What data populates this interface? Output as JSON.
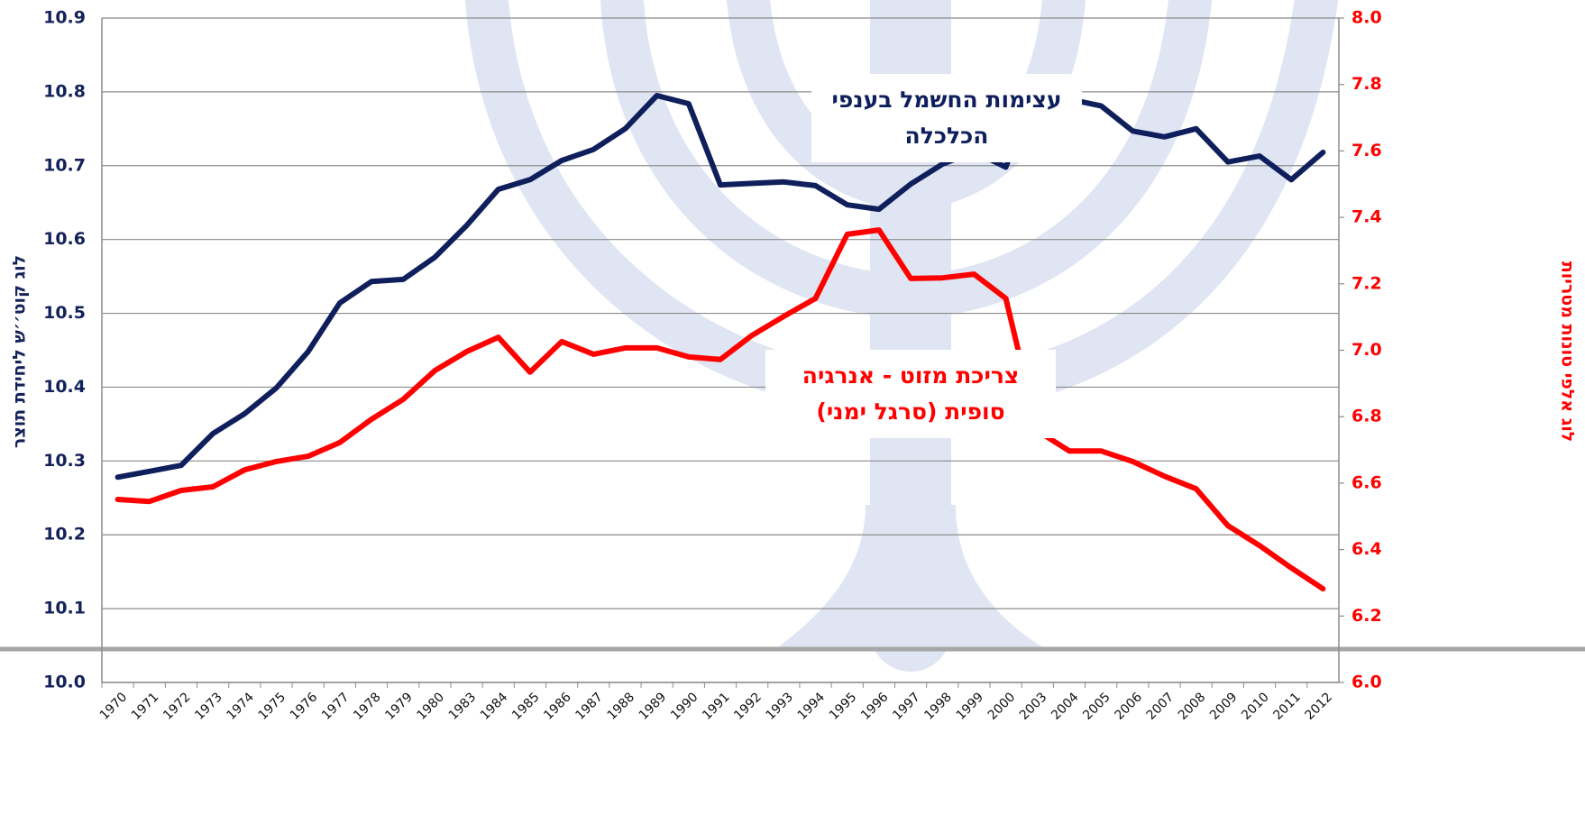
{
  "chart_data": {
    "type": "line",
    "y_label": "לוג קוט׳׳ש ליחידת תוצר",
    "y2_label": "לוג אלפי טונות מטריות",
    "categories": [
      "1970",
      "1971",
      "1972",
      "1973",
      "1974",
      "1975",
      "1976",
      "1977",
      "1978",
      "1979",
      "1980",
      "1983",
      "1984",
      "1985",
      "1986",
      "1987",
      "1988",
      "1989",
      "1990",
      "1991",
      "1992",
      "1993",
      "1994",
      "1995",
      "1996",
      "1997",
      "1998",
      "1999",
      "2000",
      "2003",
      "2004",
      "2005",
      "2006",
      "2007",
      "2008",
      "2009",
      "2010",
      "2011",
      "2012"
    ],
    "series": [
      {
        "name": [
          "עצימות החשמל בענפי",
          "הכלכלה"
        ],
        "color": "#0f1f5c",
        "axis": "y",
        "values": [
          10.278,
          10.286,
          10.294,
          10.337,
          10.364,
          10.399,
          10.448,
          10.514,
          10.543,
          10.546,
          10.576,
          10.619,
          10.668,
          10.681,
          10.707,
          10.722,
          10.75,
          10.795,
          10.784,
          10.674,
          10.676,
          10.678,
          10.673,
          10.647,
          10.641,
          10.675,
          10.702,
          10.719,
          10.698,
          10.817,
          10.79,
          10.781,
          10.747,
          10.739,
          10.75,
          10.705,
          10.713,
          10.681,
          10.718
        ]
      },
      {
        "name": [
          "צריכת מזוט - אנרגיה",
          "סופית (סרגל ימני)"
        ],
        "color": "#ff0000",
        "axis": "y2",
        "values": [
          6.551,
          6.545,
          6.578,
          6.589,
          6.64,
          6.665,
          6.681,
          6.722,
          6.792,
          6.852,
          6.939,
          6.996,
          7.039,
          6.934,
          7.026,
          6.988,
          7.007,
          7.007,
          6.98,
          6.972,
          7.045,
          7.102,
          7.156,
          7.349,
          7.362,
          7.216,
          7.218,
          7.229,
          7.156,
          6.757,
          6.697,
          6.697,
          6.665,
          6.621,
          6.583,
          6.472,
          6.412,
          6.345,
          6.282
        ]
      }
    ],
    "ylim": [
      10.0,
      10.9
    ],
    "yticks": [
      {
        "value": 10.0,
        "label": "10.0"
      },
      10.1,
      10.2,
      10.3,
      10.4,
      10.5,
      10.6,
      10.7,
      10.8,
      10.9
    ],
    "y2lim": [
      6.0,
      8.0
    ],
    "y2ticks": [
      {
        "value": 6.0,
        "label": "6.0"
      },
      6.2,
      6.4,
      6.6,
      6.8,
      {
        "value": 7.0,
        "label": "7.0"
      },
      7.2,
      7.4,
      7.6,
      7.8,
      {
        "value": 8.0,
        "label": "8.0"
      }
    ],
    "grid": true
  }
}
